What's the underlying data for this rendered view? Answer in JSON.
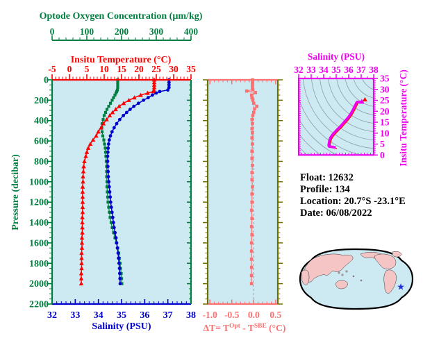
{
  "figure": {
    "plot_bg": "#cde9f2",
    "colors": {
      "oxygen": "#008040",
      "temperature": "#ff0000",
      "salinity": "#0000cc",
      "pressure": "#008040",
      "delta": "#ff7070",
      "olive_frame": "#6e6e00",
      "magenta": "#ee00ee",
      "contour": "#92a5ad",
      "zero_line": "#9aa0a0",
      "land": "#f5c4c4",
      "ocean": "#cde9f2",
      "map_outline": "#000000",
      "star": "#2233dd",
      "text": "#000000"
    }
  },
  "chart_data": [
    {
      "type": "line",
      "title": "Vertical profiles vs pressure",
      "ylabel": "Pressure (decibar)",
      "ylim": [
        0,
        2200
      ],
      "y_ticks": [
        0,
        200,
        400,
        600,
        800,
        1000,
        1200,
        1400,
        1600,
        1800,
        2000,
        2200
      ],
      "grid": false,
      "legend": "none",
      "pressure_db": [
        0,
        25,
        50,
        75,
        100,
        115,
        130,
        150,
        175,
        200,
        230,
        260,
        290,
        320,
        350,
        390,
        430,
        470,
        510,
        550,
        590,
        630,
        670,
        710,
        750,
        800,
        850,
        900,
        950,
        1000,
        1050,
        1100,
        1150,
        1200,
        1250,
        1300,
        1350,
        1400,
        1450,
        1500,
        1550,
        1600,
        1650,
        1700,
        1750,
        1800,
        1850,
        1900,
        1950,
        2000
      ],
      "series": [
        {
          "name": "Optode Oxygen Concentration",
          "units": "µm/kg",
          "axis_title": "Optode Oxygen Concentration (µm/kg)",
          "xlim": [
            0,
            400
          ],
          "x_ticks": [
            "0",
            "100",
            "200",
            "300",
            "400"
          ],
          "marker": "square",
          "color": "#008040",
          "values": [
            189,
            189,
            189,
            189,
            188,
            186,
            184,
            181,
            177,
            173,
            168,
            163,
            158,
            154,
            150,
            147,
            144,
            143,
            144,
            146,
            149,
            151,
            153,
            154,
            155,
            156,
            157,
            157,
            157,
            158,
            158,
            159,
            160,
            161,
            163,
            165,
            167,
            170,
            173,
            177,
            181,
            185,
            189,
            192,
            194,
            196,
            197,
            199,
            200,
            201
          ]
        },
        {
          "name": "Insitu Temperature",
          "units": "°C",
          "axis_title": "Insitu Temperature (°C)",
          "xlim": [
            -5,
            35
          ],
          "x_ticks": [
            "-5",
            "0",
            "5",
            "10",
            "15",
            "20",
            "25",
            "30",
            "35"
          ],
          "marker": "triangle",
          "color": "#ff0000",
          "values": [
            24.4,
            24.4,
            24.4,
            24.4,
            24.3,
            24.2,
            22.5,
            20.5,
            18.7,
            17.1,
            15.6,
            14.3,
            13.3,
            12.4,
            11.6,
            10.7,
            9.8,
            9.1,
            8.3,
            7.7,
            6.8,
            6.0,
            5.4,
            5.0,
            4.7,
            4.3,
            4.1,
            4.0,
            3.9,
            3.9,
            3.8,
            3.8,
            3.8,
            3.8,
            3.8,
            3.8,
            3.7,
            3.7,
            3.7,
            3.7,
            3.6,
            3.6,
            3.6,
            3.5,
            3.5,
            3.5,
            3.5,
            3.4,
            3.4,
            3.4
          ]
        },
        {
          "name": "Salinity",
          "units": "PSU",
          "axis_title": "Salinity (PSU)",
          "xlim": [
            32,
            38
          ],
          "x_ticks": [
            "32",
            "33",
            "34",
            "35",
            "36",
            "37",
            "38"
          ],
          "marker": "circle",
          "color": "#0000cc",
          "values": [
            37.05,
            37.05,
            37.05,
            37.05,
            37.0,
            36.65,
            36.5,
            36.33,
            36.15,
            35.95,
            35.73,
            35.53,
            35.37,
            35.22,
            35.08,
            34.92,
            34.79,
            34.68,
            34.59,
            34.52,
            34.47,
            34.44,
            34.42,
            34.41,
            34.4,
            34.4,
            34.41,
            34.42,
            34.43,
            34.45,
            34.47,
            34.49,
            34.51,
            34.53,
            34.56,
            34.59,
            34.62,
            34.65,
            34.68,
            34.72,
            34.76,
            34.79,
            34.82,
            34.85,
            34.87,
            34.89,
            34.91,
            34.92,
            34.93,
            34.94
          ]
        }
      ]
    },
    {
      "type": "line",
      "title": "Temperature difference profile",
      "title_parts": {
        "pre": "ΔT= T",
        "sup1": "Opt",
        "mid": " - T",
        "sup2": "SBE",
        "post": " (°C)"
      },
      "xlim": [
        -1.05,
        0.55
      ],
      "x_ticks": [
        "-1.0",
        "-0.5",
        "0.0",
        "0.5"
      ],
      "x_tick_values": [
        -1.0,
        -0.5,
        0.0,
        0.5
      ],
      "ylim": [
        0,
        2200
      ],
      "zero_reference_line": true,
      "marker": "square",
      "color": "#ff7070",
      "pressure_db": [
        0,
        25,
        50,
        75,
        95,
        110,
        125,
        150,
        175,
        200,
        230,
        260,
        285,
        320,
        350,
        390,
        430,
        480,
        520,
        570,
        630,
        700,
        770,
        840,
        910,
        980,
        1050,
        1120,
        1200,
        1280,
        1360,
        1440,
        1520,
        1600,
        1680,
        1760,
        1840,
        1920,
        2000
      ],
      "values": [
        -0.03,
        -0.03,
        -0.03,
        -0.03,
        -0.02,
        -0.16,
        0.04,
        -0.05,
        -0.04,
        -0.02,
        0.0,
        0.07,
        0.02,
        0.0,
        -0.02,
        -0.04,
        -0.03,
        -0.04,
        -0.03,
        -0.04,
        -0.03,
        -0.04,
        -0.04,
        -0.03,
        -0.04,
        -0.04,
        -0.03,
        -0.04,
        -0.04,
        -0.05,
        -0.04,
        -0.05,
        -0.04,
        -0.05,
        -0.05,
        -0.05,
        -0.05,
        -0.05,
        -0.05
      ]
    },
    {
      "type": "line",
      "title": "T-S diagram",
      "xlabel": "Salinity (PSU)",
      "xlim": [
        32,
        38
      ],
      "x_ticks": [
        "32",
        "33",
        "34",
        "35",
        "36",
        "37",
        "38"
      ],
      "ylabel": "Insitu Temperature (°C)",
      "ylim": [
        0,
        35
      ],
      "y_ticks": [
        "0",
        "5",
        "10",
        "15",
        "20",
        "25",
        "30",
        "35"
      ],
      "color": "#ee00ee",
      "background_isopycnal_contours": true,
      "points_note": "curve is salinity vs temperature pairs taken from the profile series of chart 1"
    }
  ],
  "info": {
    "lines": [
      {
        "label": "Float:",
        "value": "12632"
      },
      {
        "label": "Profile:",
        "value": "134"
      },
      {
        "label": "Location:",
        "value": "20.7°S  -23.1°E"
      },
      {
        "label": "Date:",
        "value": "06/08/2022"
      }
    ]
  },
  "map": {
    "description": "Pacific-centered world map",
    "star_marker": {
      "fx": 0.89,
      "fy": 0.62,
      "color": "#2233dd"
    }
  }
}
